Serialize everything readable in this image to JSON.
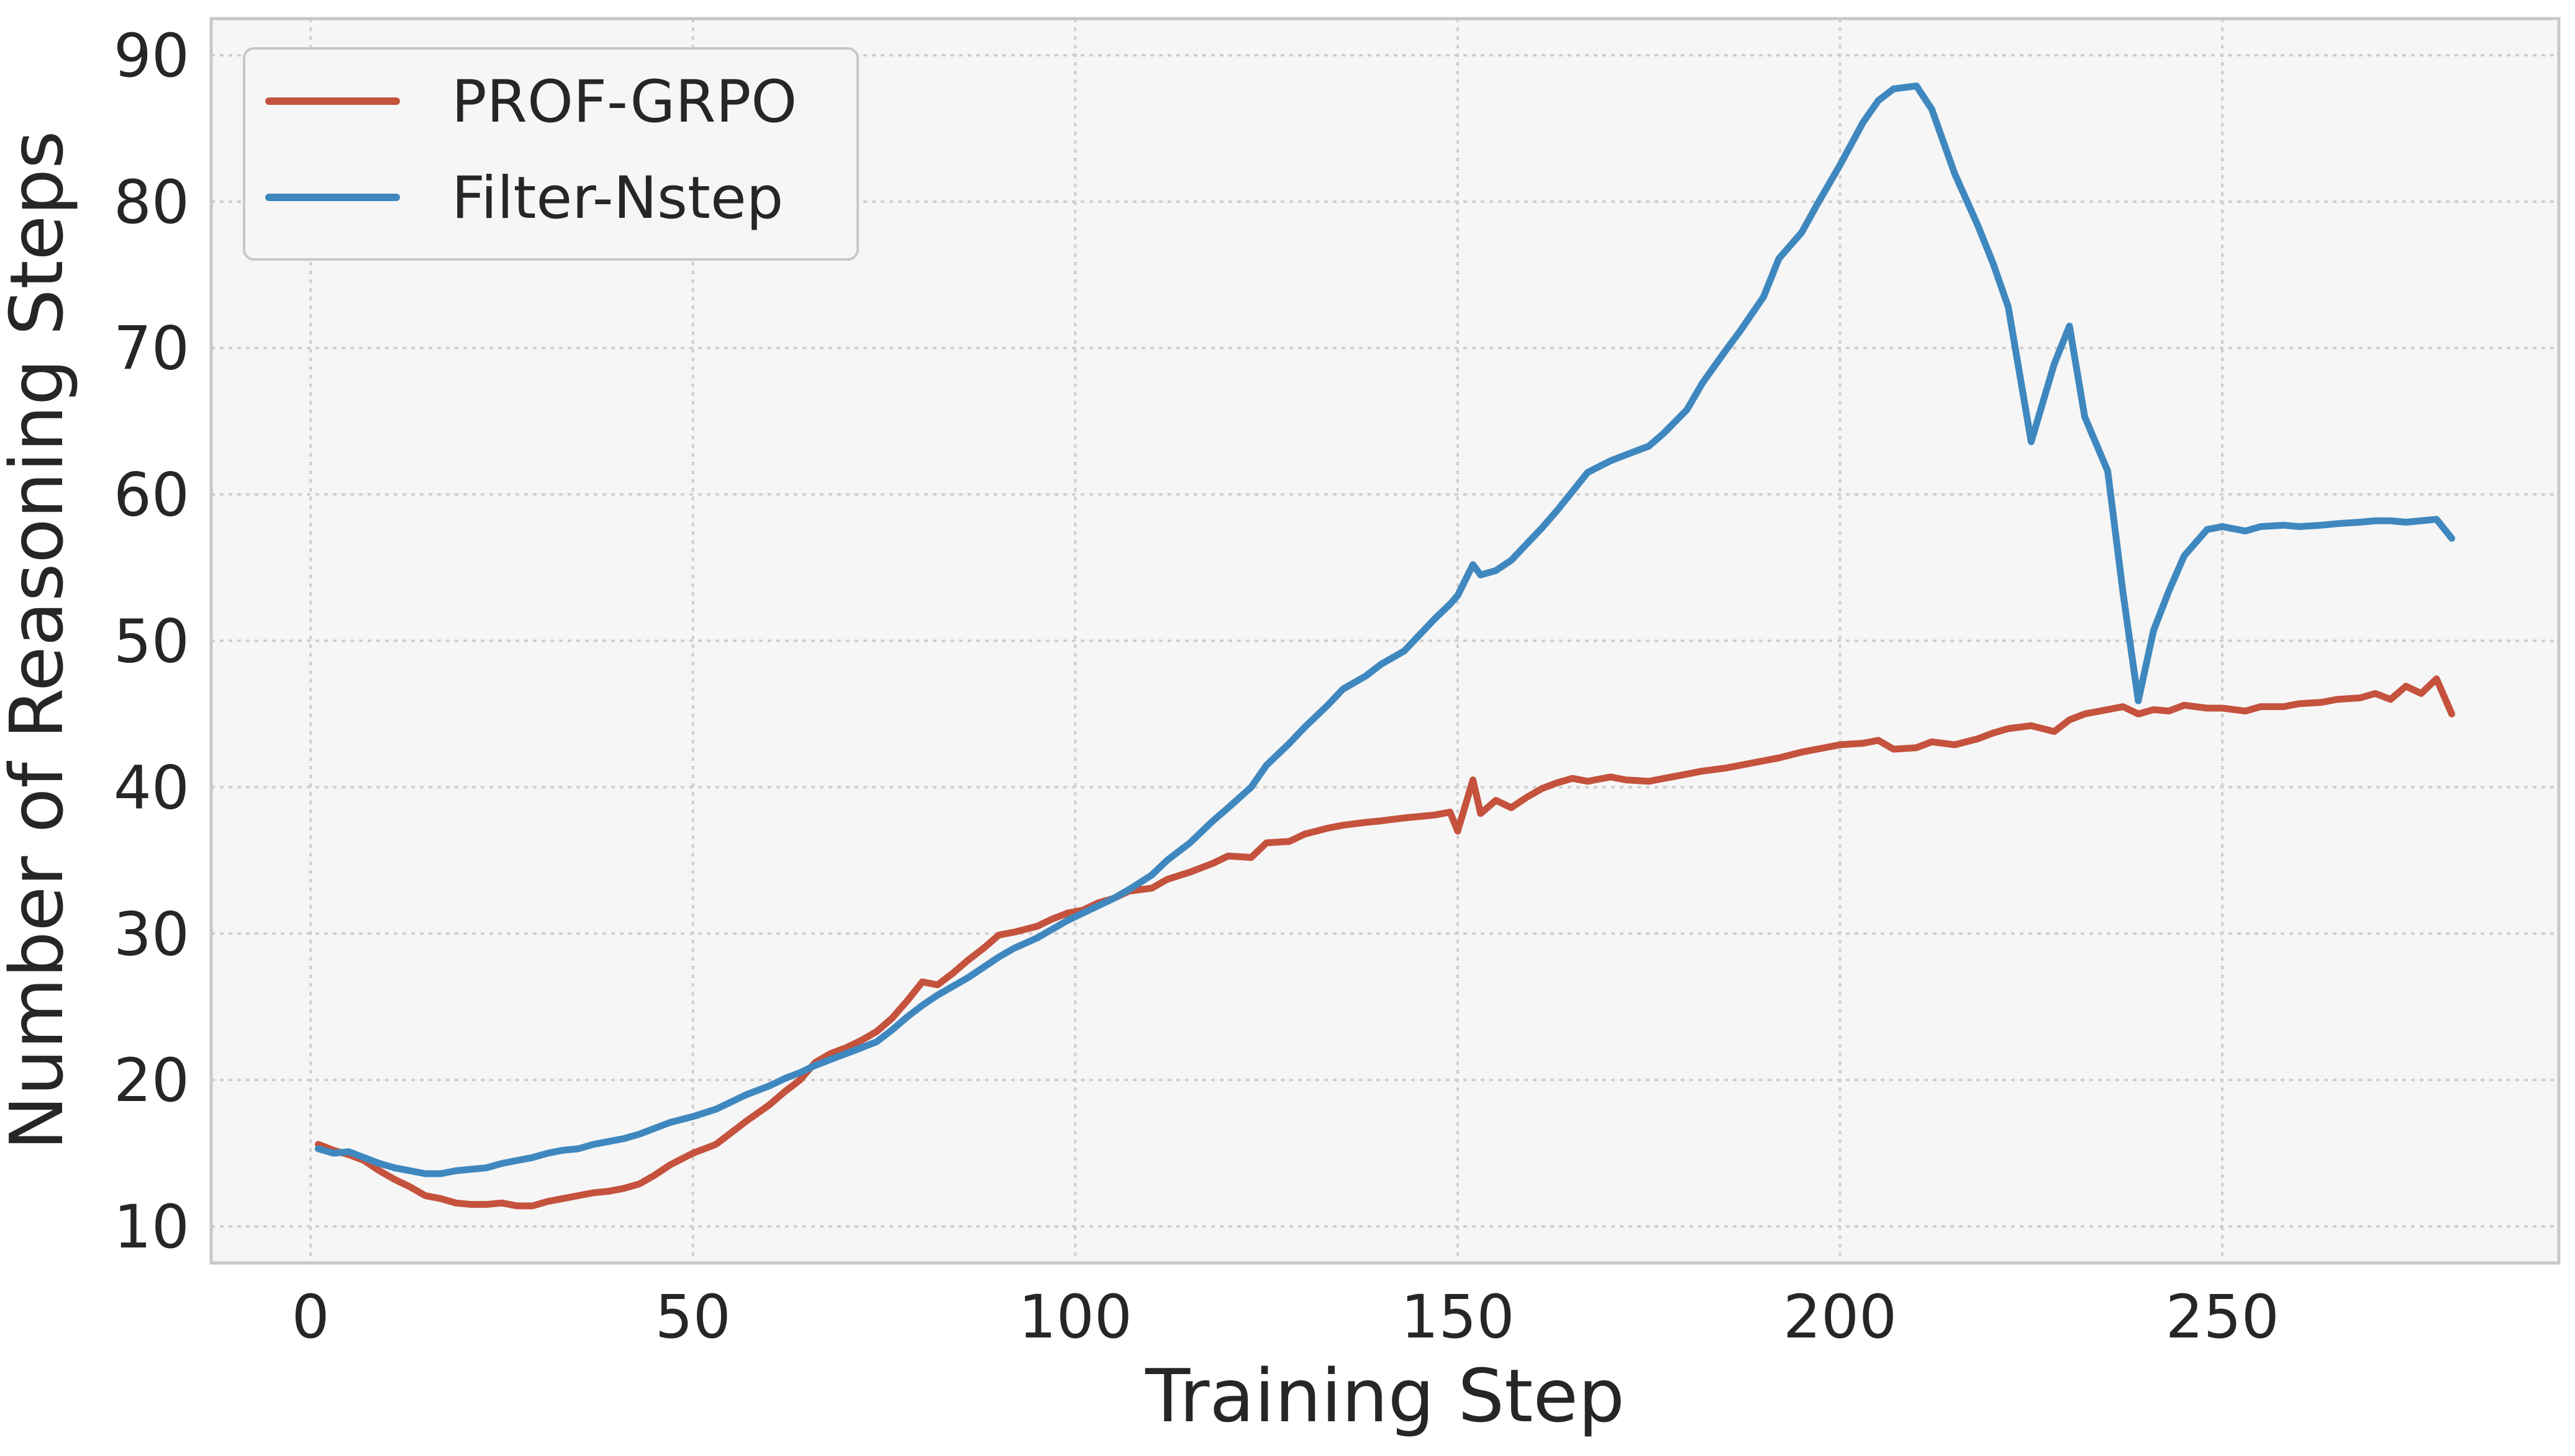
{
  "chart_data": {
    "type": "line",
    "title": "",
    "xlabel": "Training Step",
    "ylabel": "Number of Reasoning Steps",
    "xlim": [
      -13,
      294
    ],
    "ylim": [
      7.5,
      92.5
    ],
    "xticks": [
      0,
      50,
      100,
      150,
      200,
      250
    ],
    "yticks": [
      10,
      20,
      30,
      40,
      50,
      60,
      70,
      80,
      90
    ],
    "grid": true,
    "legend": "top-left",
    "background": "#f6f6f6",
    "series": [
      {
        "name": "PROF-GRPO",
        "color": "#c5523d",
        "x": [
          1,
          3,
          5,
          7,
          9,
          11,
          13,
          15,
          17,
          19,
          21,
          23,
          25,
          27,
          29,
          31,
          33,
          35,
          37,
          39,
          41,
          43,
          45,
          47,
          50,
          53,
          55,
          57,
          60,
          62,
          64,
          66,
          68,
          70,
          72,
          74,
          76,
          78,
          80,
          82,
          84,
          86,
          88,
          90,
          92,
          95,
          97,
          99,
          101,
          103,
          105,
          107,
          110,
          112,
          115,
          118,
          120,
          123,
          125,
          128,
          130,
          133,
          135,
          138,
          140,
          143,
          145,
          147,
          149,
          150,
          152,
          153,
          155,
          157,
          159,
          161,
          163,
          165,
          167,
          170,
          172,
          175,
          177,
          180,
          182,
          185,
          187,
          190,
          192,
          195,
          197,
          200,
          203,
          205,
          207,
          210,
          212,
          215,
          218,
          220,
          222,
          225,
          228,
          230,
          232,
          235,
          237,
          239,
          241,
          243,
          245,
          248,
          250,
          253,
          255,
          258,
          260,
          263,
          265,
          268,
          270,
          272,
          274,
          276,
          278,
          280
        ],
        "values": [
          15.6,
          15.2,
          14.9,
          14.5,
          13.8,
          13.2,
          12.7,
          12.1,
          11.9,
          11.6,
          11.5,
          11.5,
          11.6,
          11.4,
          11.4,
          11.7,
          11.9,
          12.1,
          12.3,
          12.4,
          12.6,
          12.9,
          13.5,
          14.2,
          15.0,
          15.6,
          16.4,
          17.2,
          18.3,
          19.2,
          20.0,
          21.2,
          21.8,
          22.2,
          22.7,
          23.3,
          24.2,
          25.4,
          26.7,
          26.5,
          27.3,
          28.2,
          29.0,
          29.9,
          30.1,
          30.5,
          31.0,
          31.4,
          31.6,
          32.1,
          32.4,
          32.9,
          33.1,
          33.7,
          34.2,
          34.8,
          35.3,
          35.2,
          36.2,
          36.3,
          36.8,
          37.2,
          37.4,
          37.6,
          37.7,
          37.9,
          38.0,
          38.1,
          38.3,
          37.0,
          40.5,
          38.2,
          39.1,
          38.6,
          39.3,
          39.9,
          40.3,
          40.6,
          40.4,
          40.7,
          40.5,
          40.4,
          40.6,
          40.9,
          41.1,
          41.3,
          41.5,
          41.8,
          42.0,
          42.4,
          42.6,
          42.9,
          43.0,
          43.2,
          42.6,
          42.7,
          43.1,
          42.9,
          43.3,
          43.7,
          44.0,
          44.2,
          43.8,
          44.6,
          45.0,
          45.3,
          45.5,
          45.0,
          45.3,
          45.2,
          45.6,
          45.4,
          45.4,
          45.2,
          45.5,
          45.5,
          45.7,
          45.8,
          46.0,
          46.1,
          46.4,
          46.0,
          46.9,
          46.4,
          47.4,
          45.0
        ]
      },
      {
        "name": "Filter-Nstep",
        "color": "#3f88bf",
        "x": [
          1,
          3,
          5,
          7,
          9,
          11,
          13,
          15,
          17,
          19,
          21,
          23,
          25,
          27,
          29,
          31,
          33,
          35,
          37,
          39,
          41,
          43,
          45,
          47,
          50,
          53,
          55,
          57,
          60,
          62,
          64,
          66,
          68,
          70,
          72,
          74,
          76,
          78,
          80,
          82,
          84,
          86,
          88,
          90,
          92,
          95,
          97,
          99,
          101,
          103,
          105,
          107,
          110,
          112,
          115,
          118,
          120,
          123,
          125,
          128,
          130,
          133,
          135,
          138,
          140,
          143,
          145,
          147,
          149,
          150,
          152,
          153,
          155,
          157,
          159,
          161,
          163,
          165,
          167,
          170,
          172,
          175,
          177,
          180,
          182,
          185,
          187,
          190,
          192,
          195,
          197,
          200,
          203,
          205,
          207,
          210,
          212,
          215,
          218,
          220,
          222,
          225,
          228,
          230,
          232,
          235,
          237,
          239,
          241,
          243,
          245,
          248,
          250,
          253,
          255,
          258,
          260,
          263,
          265,
          268,
          270,
          272,
          274,
          276,
          278,
          280
        ],
        "values": [
          15.3,
          15.0,
          15.1,
          14.7,
          14.3,
          14.0,
          13.8,
          13.6,
          13.6,
          13.8,
          13.9,
          14.0,
          14.3,
          14.5,
          14.7,
          15.0,
          15.2,
          15.3,
          15.6,
          15.8,
          16.0,
          16.3,
          16.7,
          17.1,
          17.5,
          18.0,
          18.5,
          19.0,
          19.6,
          20.1,
          20.5,
          21.0,
          21.4,
          21.8,
          22.2,
          22.6,
          23.4,
          24.3,
          25.1,
          25.8,
          26.4,
          27.0,
          27.7,
          28.4,
          29.0,
          29.7,
          30.3,
          30.9,
          31.4,
          31.9,
          32.4,
          33.0,
          34.0,
          35.0,
          36.2,
          37.7,
          38.6,
          40.0,
          41.5,
          43.0,
          44.1,
          45.6,
          46.7,
          47.6,
          48.4,
          49.3,
          50.4,
          51.5,
          52.5,
          53.1,
          55.2,
          54.5,
          54.8,
          55.5,
          56.6,
          57.7,
          58.9,
          60.2,
          61.5,
          62.3,
          62.7,
          63.3,
          64.2,
          65.8,
          67.6,
          69.8,
          71.2,
          73.5,
          76.1,
          77.9,
          79.8,
          82.5,
          85.4,
          86.9,
          87.7,
          87.9,
          86.3,
          81.9,
          78.4,
          75.8,
          72.8,
          63.6,
          68.9,
          71.5,
          65.3,
          61.6,
          53.3,
          45.9,
          50.7,
          53.4,
          55.8,
          57.6,
          57.8,
          57.5,
          57.8,
          57.9,
          57.8,
          57.9,
          58.0,
          58.1,
          58.2,
          58.2,
          58.1,
          58.2,
          58.3,
          57.0
        ]
      }
    ]
  }
}
